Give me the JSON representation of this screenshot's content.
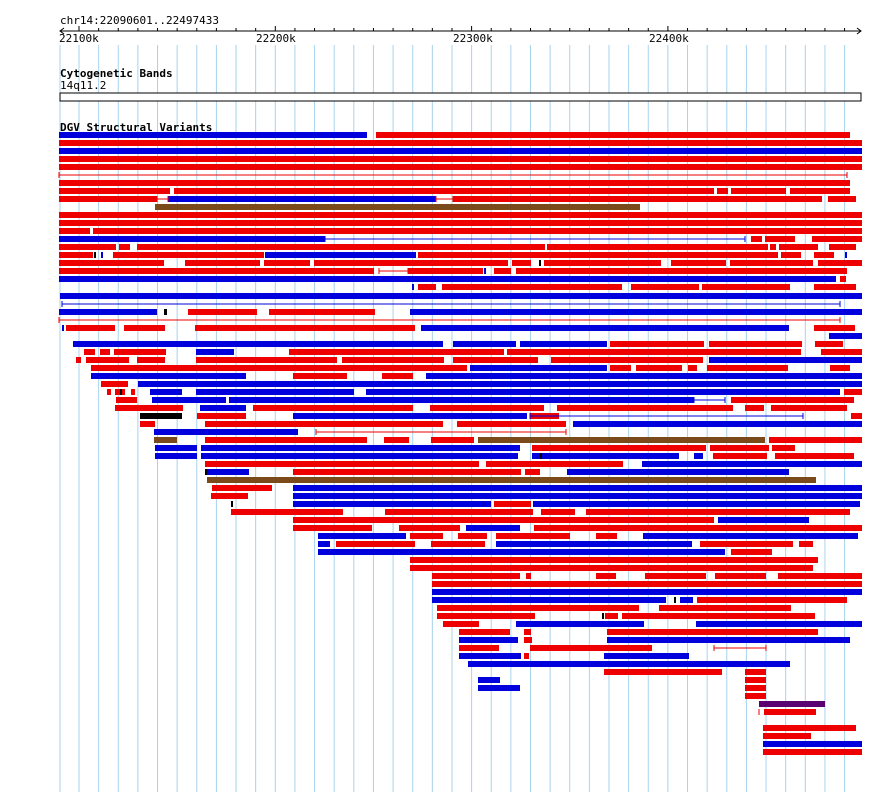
{
  "ruler": {
    "region_label": "chr14:22090601..22497433",
    "ticks": [
      "22100k",
      "22200k",
      "22300k",
      "22400k"
    ]
  },
  "tracks": {
    "cytoband": {
      "title": "Cytogenetic Bands",
      "band_label": "14q11.2"
    },
    "dgv": {
      "title": "DGV Structural Variants"
    }
  },
  "colors": {
    "loss": "#ee0000",
    "gain": "#0000dd",
    "inversion": "#7b4a1a",
    "complex": "#5b0070",
    "other": "#000000",
    "grid": "#a9d3ee"
  }
}
